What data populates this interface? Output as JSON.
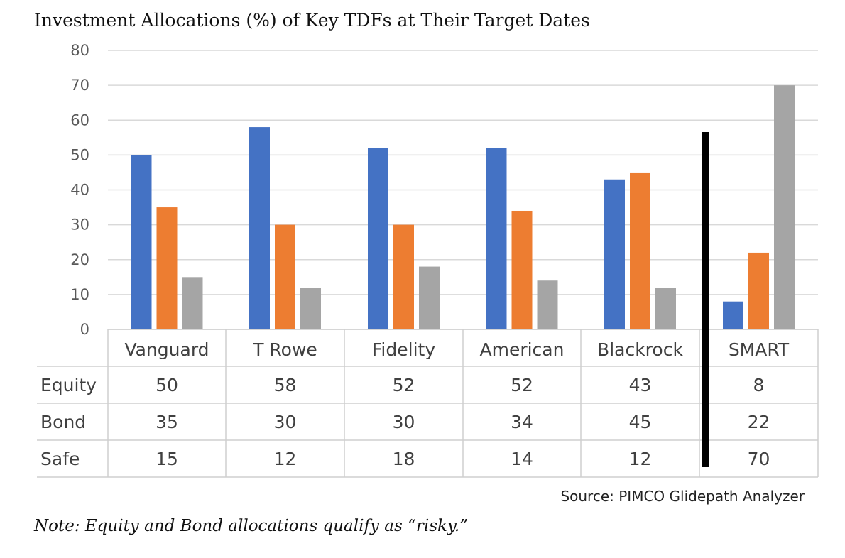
{
  "chart_data": {
    "type": "bar",
    "title": "Investment Allocations (%) of Key TDFs at Their Target Dates",
    "categories": [
      "Vanguard",
      "T Rowe",
      "Fidelity",
      "American",
      "Blackrock",
      "SMART"
    ],
    "series": [
      {
        "name": "Equity",
        "color": "#4472C4",
        "values": [
          50,
          58,
          52,
          52,
          43,
          8
        ]
      },
      {
        "name": "Bond",
        "color": "#ED7D31",
        "values": [
          35,
          30,
          30,
          34,
          45,
          22
        ]
      },
      {
        "name": "Safe",
        "color": "#A5A5A5",
        "values": [
          15,
          12,
          18,
          14,
          12,
          70
        ]
      }
    ],
    "ylim": [
      0,
      80
    ],
    "yticks": [
      "80",
      "70",
      "60",
      "50",
      "40",
      "30",
      "20",
      "10",
      "0"
    ],
    "grid": true,
    "legend": "data table below chart",
    "source": "Source: PIMCO Glidepath Analyzer",
    "note": "Note: Equity and Bond allocations qualify as “risky.”"
  }
}
